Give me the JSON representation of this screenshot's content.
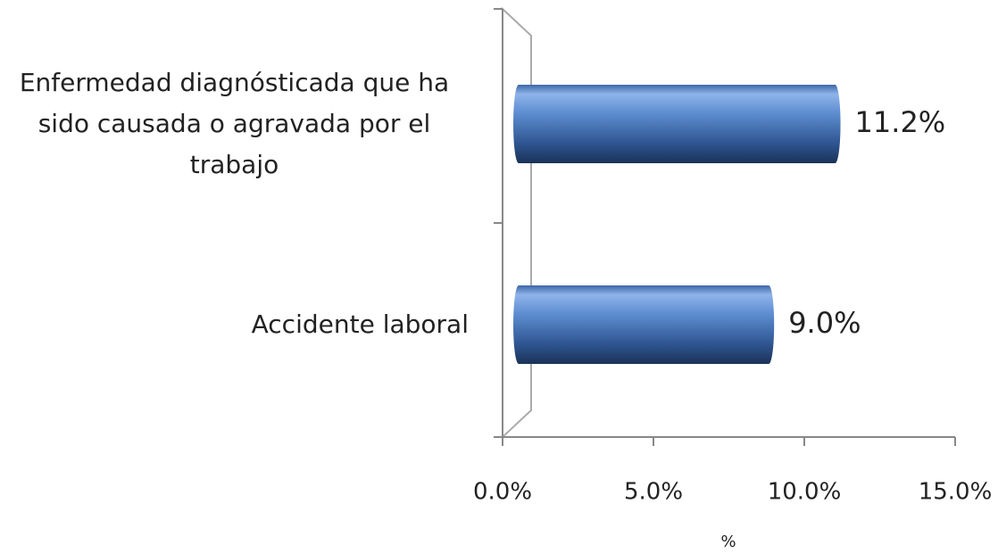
{
  "chart_data": {
    "type": "bar",
    "orientation": "horizontal",
    "categories": [
      "Enfermedad diagnósticada que ha sido causada o agravada por el trabajo",
      "Accidente laboral"
    ],
    "values": [
      11.2,
      9.0
    ],
    "value_labels": [
      "11.2%",
      "9.0%"
    ],
    "color": "#4a7cc0",
    "xlim": [
      0,
      15
    ],
    "xticks": [
      {
        "value": 0,
        "label": "0.0%"
      },
      {
        "value": 5,
        "label": "5.0%"
      },
      {
        "value": 10,
        "label": "10.0%"
      },
      {
        "value": 15,
        "label": "15.0%"
      }
    ],
    "x_label": "%"
  }
}
